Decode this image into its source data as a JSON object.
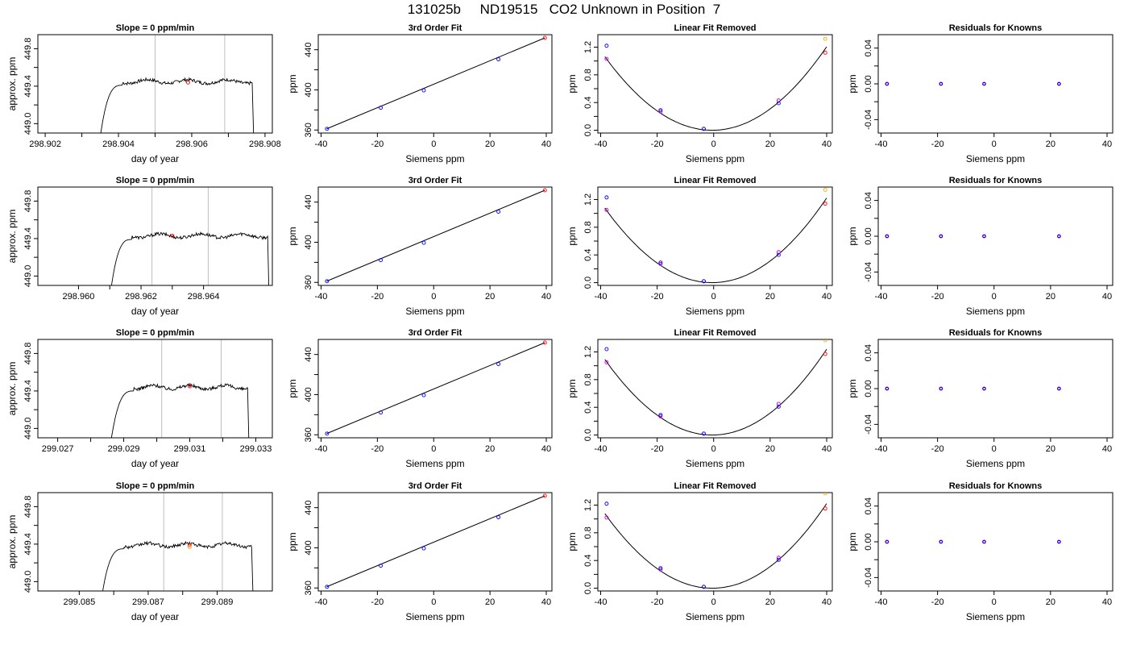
{
  "header": {
    "title": "131025b     ND19515   CO2 Unknown in Position  7"
  },
  "panel_titles": {
    "slope": "Slope =  0  ppm/min",
    "fit": "3rd Order Fit",
    "linear_removed": "Linear Fit Removed",
    "residuals": "Residuals for Knowns"
  },
  "axis_labels": {
    "day_of_year": "day of year",
    "approx_ppm": "approx. ppm",
    "ppm": "ppm",
    "siemens_ppm": "Siemens ppm"
  },
  "colors": {
    "trace": "#000000",
    "grid_vline": "#bfbfbf",
    "known_point": "#0000ff",
    "alt_point": "#cc00cc",
    "unknown_point": "#ff0000",
    "highlight_point": "#ffa500"
  },
  "chart_data": [
    {
      "type": "line",
      "panel": "slope",
      "row": 1,
      "title": "Slope =  0  ppm/min",
      "xlabel": "day of year",
      "ylabel": "approx. ppm",
      "xlim": [
        298.9018,
        298.9082
      ],
      "ylim": [
        448.9,
        449.95
      ],
      "xticks": [
        "298.902",
        "298.904",
        "298.906",
        "298.908"
      ],
      "yticks": [
        "449.0",
        "449.4",
        "449.8"
      ],
      "vlines": [
        298.905,
        298.9069
      ],
      "trace": {
        "start": 298.90345,
        "rise_end": 298.9041,
        "end": 298.90765,
        "level": 449.45
      },
      "markers": [
        {
          "x": 298.9059,
          "y": 449.44,
          "color": "red"
        }
      ]
    },
    {
      "type": "line",
      "panel": "slope",
      "row": 2,
      "title": "Slope =  0  ppm/min",
      "xlabel": "day of year",
      "ylabel": "approx. ppm",
      "xlim": [
        298.9587,
        298.9662
      ],
      "ylim": [
        448.9,
        449.95
      ],
      "xticks": [
        "298.960",
        "298.962",
        "298.964"
      ],
      "yticks": [
        "449.0",
        "449.4",
        "449.8"
      ],
      "vlines": [
        298.96235,
        298.96415
      ],
      "trace": {
        "start": 298.96098,
        "rise_end": 298.9617,
        "end": 298.96605,
        "level": 449.43
      },
      "markers": [
        {
          "x": 298.963,
          "y": 449.43,
          "color": "red"
        }
      ]
    },
    {
      "type": "line",
      "panel": "slope",
      "row": 3,
      "title": "Slope =  0  ppm/min",
      "xlabel": "day of year",
      "ylabel": "approx. ppm",
      "xlim": [
        299.0264,
        299.0335
      ],
      "ylim": [
        448.9,
        449.95
      ],
      "xticks": [
        "299.027",
        "299.029",
        "299.031",
        "299.033"
      ],
      "yticks": [
        "449.0",
        "449.4",
        "449.8"
      ],
      "vlines": [
        299.03015,
        299.03195
      ],
      "trace": {
        "start": 299.02855,
        "rise_end": 299.0293,
        "end": 299.03275,
        "level": 449.44
      },
      "markers": [
        {
          "x": 299.031,
          "y": 449.45,
          "color": "red"
        }
      ]
    },
    {
      "type": "line",
      "panel": "slope",
      "row": 4,
      "title": "Slope =  0  ppm/min",
      "xlabel": "day of year",
      "ylabel": "approx. ppm",
      "xlim": [
        299.0838,
        299.0906
      ],
      "ylim": [
        448.9,
        449.95
      ],
      "xticks": [
        "299.085",
        "299.087",
        "299.089"
      ],
      "yticks": [
        "449.0",
        "449.4",
        "449.8"
      ],
      "vlines": [
        299.08745,
        299.08915
      ],
      "trace": {
        "start": 299.0856,
        "rise_end": 299.0863,
        "end": 299.09,
        "level": 449.39
      },
      "markers": [
        {
          "x": 299.0882,
          "y": 449.39,
          "color": "red"
        },
        {
          "x": 299.0882,
          "y": 449.37,
          "color": "orange"
        }
      ]
    },
    {
      "type": "scatter",
      "panel": "fit",
      "row": 1,
      "title": "3rd Order Fit",
      "xlabel": "Siemens ppm",
      "ylabel": "ppm",
      "xlim": [
        -41,
        42
      ],
      "ylim": [
        357,
        455
      ],
      "xticks": [
        "-40",
        "-20",
        "0",
        "20",
        "40"
      ],
      "yticks": [
        "360",
        "400",
        "440"
      ],
      "line": [
        [
          -38,
          361.2
        ],
        [
          39.5,
          451.8
        ]
      ],
      "points": [
        {
          "x": -37.9,
          "y": 361.2
        },
        {
          "x": -18.8,
          "y": 382.2
        },
        {
          "x": -3.5,
          "y": 399.5
        },
        {
          "x": 23.0,
          "y": 430.5
        }
      ],
      "unknown": [
        {
          "x": 39.5,
          "y": 451.8
        }
      ]
    },
    {
      "type": "scatter",
      "panel": "fit",
      "row": 2,
      "title": "3rd Order Fit",
      "xlabel": "Siemens ppm",
      "ylabel": "ppm",
      "xlim": [
        -41,
        42
      ],
      "ylim": [
        357,
        455
      ],
      "xticks": [
        "-40",
        "-20",
        "0",
        "20",
        "40"
      ],
      "yticks": [
        "360",
        "400",
        "440"
      ],
      "line": [
        [
          -38,
          361.2
        ],
        [
          39.5,
          451.8
        ]
      ],
      "points": [
        {
          "x": -37.9,
          "y": 361.2
        },
        {
          "x": -18.8,
          "y": 382.2
        },
        {
          "x": -3.5,
          "y": 399.5
        },
        {
          "x": 23.0,
          "y": 430.5
        }
      ],
      "unknown": [
        {
          "x": 39.5,
          "y": 451.8
        }
      ]
    },
    {
      "type": "scatter",
      "panel": "fit",
      "row": 3,
      "title": "3rd Order Fit",
      "xlabel": "Siemens ppm",
      "ylabel": "ppm",
      "xlim": [
        -41,
        42
      ],
      "ylim": [
        357,
        455
      ],
      "xticks": [
        "-40",
        "-20",
        "0",
        "20",
        "40"
      ],
      "yticks": [
        "360",
        "400",
        "440"
      ],
      "line": [
        [
          -38,
          361.2
        ],
        [
          39.5,
          451.8
        ]
      ],
      "points": [
        {
          "x": -37.9,
          "y": 361.2
        },
        {
          "x": -18.8,
          "y": 382.2
        },
        {
          "x": -3.5,
          "y": 399.5
        },
        {
          "x": 23.0,
          "y": 430.5
        }
      ],
      "unknown": [
        {
          "x": 39.5,
          "y": 451.8
        }
      ]
    },
    {
      "type": "scatter",
      "panel": "fit",
      "row": 4,
      "title": "3rd Order Fit",
      "xlabel": "Siemens ppm",
      "ylabel": "ppm",
      "xlim": [
        -41,
        42
      ],
      "ylim": [
        357,
        455
      ],
      "xticks": [
        "-40",
        "-20",
        "0",
        "20",
        "40"
      ],
      "yticks": [
        "360",
        "400",
        "440"
      ],
      "line": [
        [
          -38,
          361.2
        ],
        [
          39.5,
          451.8
        ]
      ],
      "points": [
        {
          "x": -37.9,
          "y": 361.2
        },
        {
          "x": -18.8,
          "y": 382.2
        },
        {
          "x": -3.5,
          "y": 399.5
        },
        {
          "x": 23.0,
          "y": 430.5
        }
      ],
      "unknown": [
        {
          "x": 39.5,
          "y": 451.8
        }
      ]
    },
    {
      "type": "scatter",
      "panel": "linear_removed",
      "row": 1,
      "title": "Linear Fit Removed",
      "xlabel": "Siemens ppm",
      "ylabel": "ppm",
      "xlim": [
        -41,
        42
      ],
      "ylim": [
        -0.04,
        1.38
      ],
      "xticks": [
        "-40",
        "-20",
        "0",
        "20",
        "40"
      ],
      "yticks": [
        "0.0",
        "0.4",
        "0.8",
        "1.2"
      ],
      "curve": {
        "vertex_x": -0.5,
        "vertex_y": 0.0,
        "a": 0.000735,
        "x_range": [
          -38.5,
          40
        ]
      },
      "blue": [
        {
          "x": -37.9,
          "y": 1.22
        },
        {
          "x": -18.8,
          "y": 0.29
        },
        {
          "x": -3.5,
          "y": 0.02
        },
        {
          "x": 23.0,
          "y": 0.39
        }
      ],
      "magenta": [
        {
          "x": -37.9,
          "y": 1.03
        },
        {
          "x": -18.8,
          "y": 0.27
        },
        {
          "x": -3.5,
          "y": 0.02
        },
        {
          "x": 23.0,
          "y": 0.43
        }
      ],
      "red": [
        {
          "x": 39.5,
          "y": 1.12
        }
      ],
      "orange": [
        {
          "x": 39.5,
          "y": 1.32
        }
      ]
    },
    {
      "type": "scatter",
      "panel": "linear_removed",
      "row": 2,
      "title": "Linear Fit Removed",
      "xlabel": "Siemens ppm",
      "ylabel": "ppm",
      "xlim": [
        -41,
        42
      ],
      "ylim": [
        -0.04,
        1.38
      ],
      "xticks": [
        "-40",
        "-20",
        "0",
        "20",
        "40"
      ],
      "yticks": [
        "0.0",
        "0.4",
        "0.8",
        "1.2"
      ],
      "curve": {
        "vertex_x": -0.5,
        "vertex_y": 0.0,
        "a": 0.000745,
        "x_range": [
          -38.5,
          40
        ]
      },
      "blue": [
        {
          "x": -37.9,
          "y": 1.23
        },
        {
          "x": -18.8,
          "y": 0.29
        },
        {
          "x": -3.5,
          "y": 0.02
        },
        {
          "x": 23.0,
          "y": 0.4
        }
      ],
      "magenta": [
        {
          "x": -37.9,
          "y": 1.05
        },
        {
          "x": -18.8,
          "y": 0.27
        },
        {
          "x": -3.5,
          "y": 0.02
        },
        {
          "x": 23.0,
          "y": 0.44
        }
      ],
      "red": [
        {
          "x": 39.5,
          "y": 1.14
        }
      ],
      "orange": [
        {
          "x": 39.5,
          "y": 1.34
        }
      ]
    },
    {
      "type": "scatter",
      "panel": "linear_removed",
      "row": 3,
      "title": "Linear Fit Removed",
      "xlabel": "Siemens ppm",
      "ylabel": "ppm",
      "xlim": [
        -41,
        42
      ],
      "ylim": [
        -0.04,
        1.38
      ],
      "xticks": [
        "-40",
        "-20",
        "0",
        "20",
        "40"
      ],
      "yticks": [
        "0.0",
        "0.4",
        "0.8",
        "1.2"
      ],
      "curve": {
        "vertex_x": -0.5,
        "vertex_y": 0.0,
        "a": 0.000755,
        "x_range": [
          -38.5,
          40
        ]
      },
      "blue": [
        {
          "x": -37.9,
          "y": 1.24
        },
        {
          "x": -18.8,
          "y": 0.29
        },
        {
          "x": -3.5,
          "y": 0.02
        },
        {
          "x": 23.0,
          "y": 0.41
        }
      ],
      "magenta": [
        {
          "x": -37.9,
          "y": 1.05
        },
        {
          "x": -18.8,
          "y": 0.27
        },
        {
          "x": -3.5,
          "y": 0.02
        },
        {
          "x": 23.0,
          "y": 0.45
        }
      ],
      "red": [
        {
          "x": 39.5,
          "y": 1.17
        }
      ],
      "orange": [
        {
          "x": 39.5,
          "y": 1.37
        }
      ]
    },
    {
      "type": "scatter",
      "panel": "linear_removed",
      "row": 4,
      "title": "Linear Fit Removed",
      "xlabel": "Siemens ppm",
      "ylabel": "ppm",
      "xlim": [
        -41,
        42
      ],
      "ylim": [
        -0.04,
        1.38
      ],
      "xticks": [
        "-40",
        "-20",
        "0",
        "20",
        "40"
      ],
      "yticks": [
        "0.0",
        "0.4",
        "0.8",
        "1.2"
      ],
      "curve": {
        "vertex_x": -0.5,
        "vertex_y": 0.0,
        "a": 0.000745,
        "x_range": [
          -38.5,
          40
        ]
      },
      "blue": [
        {
          "x": -37.9,
          "y": 1.22
        },
        {
          "x": -18.8,
          "y": 0.29
        },
        {
          "x": -3.5,
          "y": 0.02
        },
        {
          "x": 23.0,
          "y": 0.41
        }
      ],
      "magenta": [
        {
          "x": -37.9,
          "y": 1.02
        },
        {
          "x": -18.8,
          "y": 0.27
        },
        {
          "x": -3.5,
          "y": 0.02
        },
        {
          "x": 23.0,
          "y": 0.44
        }
      ],
      "red": [
        {
          "x": 39.5,
          "y": 1.15
        }
      ],
      "orange": [
        {
          "x": 39.5,
          "y": 1.37
        }
      ]
    },
    {
      "type": "scatter",
      "panel": "residuals",
      "row": 1,
      "title": "Residuals for Knowns",
      "xlabel": "Siemens ppm",
      "ylabel": "ppm",
      "xlim": [
        -41,
        42
      ],
      "ylim": [
        -0.055,
        0.055
      ],
      "xticks": [
        "-40",
        "-20",
        "0",
        "20",
        "40"
      ],
      "yticks": [
        "-0.04",
        "0.00",
        "0.04"
      ],
      "points": [
        {
          "x": -37.9,
          "y": 0.0
        },
        {
          "x": -18.8,
          "y": 0.0
        },
        {
          "x": -3.5,
          "y": 0.0
        },
        {
          "x": 23.0,
          "y": 0.0
        }
      ]
    },
    {
      "type": "scatter",
      "panel": "residuals",
      "row": 2,
      "title": "Residuals for Knowns",
      "xlabel": "Siemens ppm",
      "ylabel": "ppm",
      "xlim": [
        -41,
        42
      ],
      "ylim": [
        -0.055,
        0.055
      ],
      "xticks": [
        "-40",
        "-20",
        "0",
        "20",
        "40"
      ],
      "yticks": [
        "-0.04",
        "0.00",
        "0.04"
      ],
      "points": [
        {
          "x": -37.9,
          "y": 0.0
        },
        {
          "x": -18.8,
          "y": 0.0
        },
        {
          "x": -3.5,
          "y": 0.0
        },
        {
          "x": 23.0,
          "y": 0.0
        }
      ]
    },
    {
      "type": "scatter",
      "panel": "residuals",
      "row": 3,
      "title": "Residuals for Knowns",
      "xlabel": "Siemens ppm",
      "ylabel": "ppm",
      "xlim": [
        -41,
        42
      ],
      "ylim": [
        -0.055,
        0.055
      ],
      "xticks": [
        "-40",
        "-20",
        "0",
        "20",
        "40"
      ],
      "yticks": [
        "-0.04",
        "0.00",
        "0.04"
      ],
      "points": [
        {
          "x": -37.9,
          "y": 0.0
        },
        {
          "x": -18.8,
          "y": 0.0
        },
        {
          "x": -3.5,
          "y": 0.0
        },
        {
          "x": 23.0,
          "y": 0.0
        }
      ]
    },
    {
      "type": "scatter",
      "panel": "residuals",
      "row": 4,
      "title": "Residuals for Knowns",
      "xlabel": "Siemens ppm",
      "ylabel": "ppm",
      "xlim": [
        -41,
        42
      ],
      "ylim": [
        -0.055,
        0.055
      ],
      "xticks": [
        "-40",
        "-20",
        "0",
        "20",
        "40"
      ],
      "yticks": [
        "-0.04",
        "0.00",
        "0.04"
      ],
      "points": [
        {
          "x": -37.9,
          "y": 0.0
        },
        {
          "x": -18.8,
          "y": 0.0
        },
        {
          "x": -3.5,
          "y": 0.0
        },
        {
          "x": 23.0,
          "y": 0.0
        }
      ]
    }
  ]
}
